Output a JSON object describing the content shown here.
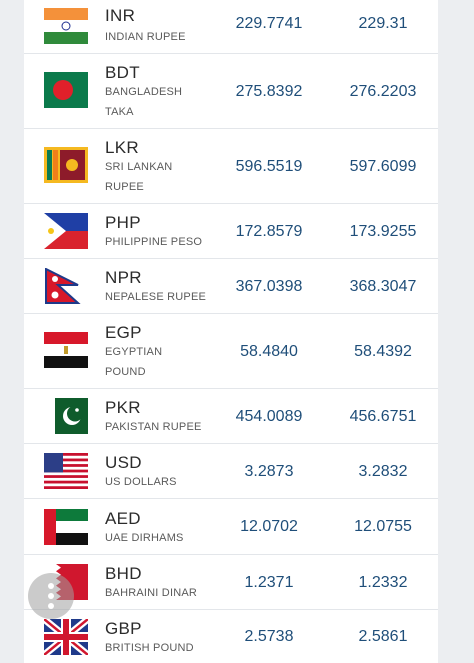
{
  "currencies": [
    {
      "code": "INR",
      "name": "INDIAN RUPEE",
      "value1": "229.7741",
      "value2": "229.31",
      "flag": "india-flag"
    },
    {
      "code": "BDT",
      "name": "BANGLADESH TAKA",
      "value1": "275.8392",
      "value2": "276.2203",
      "flag": "bangladesh-flag"
    },
    {
      "code": "LKR",
      "name": "SRI LANKAN RUPEE",
      "value1": "596.5519",
      "value2": "597.6099",
      "flag": "sri-lanka-flag"
    },
    {
      "code": "PHP",
      "name": "PHILIPPINE PESO",
      "value1": "172.8579",
      "value2": "173.9255",
      "flag": "philippines-flag"
    },
    {
      "code": "NPR",
      "name": "NEPALESE RUPEE",
      "value1": "367.0398",
      "value2": "368.3047",
      "flag": "nepal-flag"
    },
    {
      "code": "EGP",
      "name": "EGYPTIAN POUND",
      "value1": "58.4840",
      "value2": "58.4392",
      "flag": "egypt-flag"
    },
    {
      "code": "PKR",
      "name": "PAKISTAN RUPEE",
      "value1": "454.0089",
      "value2": "456.6751",
      "flag": "pakistan-flag"
    },
    {
      "code": "USD",
      "name": "US DOLLARS",
      "value1": "3.2873",
      "value2": "3.2832",
      "flag": "usa-flag"
    },
    {
      "code": "AED",
      "name": "UAE DIRHAMS",
      "value1": "12.0702",
      "value2": "12.0755",
      "flag": "uae-flag"
    },
    {
      "code": "BHD",
      "name": "BAHRAINI DINAR",
      "value1": "1.2371",
      "value2": "1.2332",
      "flag": "bahrain-flag"
    },
    {
      "code": "GBP",
      "name": "BRITISH POUND",
      "value1": "2.5738",
      "value2": "2.5861",
      "flag": "uk-flag"
    }
  ],
  "floating_menu": {
    "icon": "more-vertical-icon"
  },
  "colors": {
    "value_text": "#1f4e79",
    "divider": "#e3e6ea",
    "background": "#eceef1"
  }
}
